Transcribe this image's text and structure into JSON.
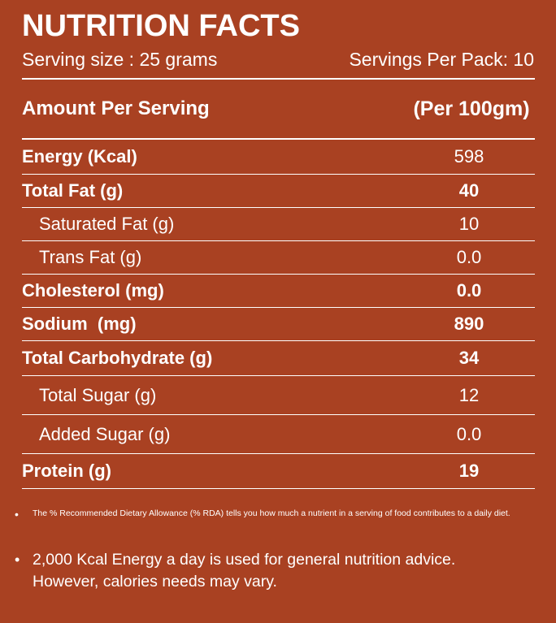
{
  "title": "NUTRITION FACTS",
  "serving_size": "Serving size : 25 grams",
  "servings_per_pack": "Servings Per Pack: 10",
  "table_header": {
    "label": "Amount Per Serving",
    "value": "(Per 100gm)"
  },
  "rows": [
    {
      "label": "Energy (Kcal)",
      "value": "598",
      "bold_label": true,
      "bold_value": false
    },
    {
      "label": "Total Fat (g)",
      "value": "40",
      "bold_label": true,
      "bold_value": true
    },
    {
      "label": "Saturated Fat (g)",
      "value": "10",
      "bold_label": false,
      "bold_value": false
    },
    {
      "label": "Trans Fat (g)",
      "value": "0.0",
      "bold_label": false,
      "bold_value": false
    },
    {
      "label": "Cholesterol (mg)",
      "value": "0.0",
      "bold_label": true,
      "bold_value": true
    },
    {
      "label": "Sodium  (mg)",
      "value": "890",
      "bold_label": true,
      "bold_value": true
    },
    {
      "label": "Total Carbohydrate (g)",
      "value": "34",
      "bold_label": true,
      "bold_value": true
    },
    {
      "label": "Total Sugar (g)",
      "value": "12",
      "bold_label": false,
      "bold_value": false
    },
    {
      "label": "Added Sugar (g)",
      "value": "0.0",
      "bold_label": false,
      "bold_value": false
    },
    {
      "label": "Protein (g)",
      "value": "19",
      "bold_label": true,
      "bold_value": true
    }
  ],
  "notes": {
    "rda": "The % Recommended Dietary Allowance (% RDA) tells you how much a nutrient in a serving of food contributes to a daily diet.",
    "kcal_line1": "2,000 Kcal Energy a day is used for general nutrition advice.",
    "kcal_line2": "However, calories needs may vary."
  },
  "colors": {
    "background": "#A94122",
    "text": "#FFFFFF"
  }
}
